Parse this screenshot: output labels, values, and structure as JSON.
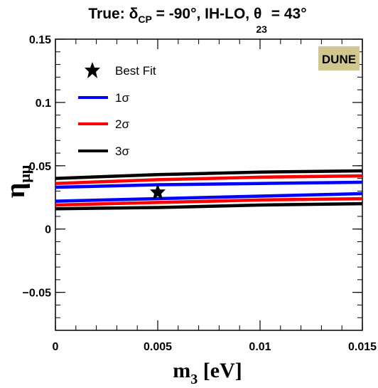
{
  "chart_data": {
    "type": "line",
    "title": {
      "prefix": "True: ",
      "delta": "δ",
      "delta_sub": "CP",
      "middle": " = -90°, IH-LO, ",
      "theta": "θ",
      "theta_sub": "23",
      "suffix": " = 43°"
    },
    "badge": "DUNE",
    "xlabel": {
      "main": "m",
      "sub": "3",
      "unit": " [eV]"
    },
    "ylabel": {
      "main": "η",
      "sub": "μμ"
    },
    "xlim": [
      0,
      0.015
    ],
    "ylim": [
      -0.08,
      0.15
    ],
    "x_ticks": [
      0,
      0.005,
      0.01,
      0.015
    ],
    "x_tick_labels": [
      "0",
      "0.005",
      "0.01",
      "0.015"
    ],
    "y_ticks": [
      -0.05,
      0,
      0.05,
      0.1,
      0.15
    ],
    "y_tick_labels": [
      "−0.05",
      "0",
      "0.05",
      "0.1",
      "0.15"
    ],
    "grid": false,
    "legend_position": "top-left",
    "legend": [
      {
        "label": "Best Fit",
        "marker": "star",
        "color": "#000000"
      },
      {
        "label": "1σ",
        "marker": "line",
        "color": "#0000ff"
      },
      {
        "label": "2σ",
        "marker": "line",
        "color": "#ff0000"
      },
      {
        "label": "3σ",
        "marker": "line",
        "color": "#000000"
      }
    ],
    "best_fit": {
      "x": 0.005,
      "y": 0.029
    },
    "series": [
      {
        "name": "3σ",
        "color": "#000000",
        "x": [
          0,
          0.005,
          0.01,
          0.015
        ],
        "y": [
          0.04,
          0.043,
          0.045,
          0.046
        ]
      },
      {
        "name": "2σ",
        "color": "#ff0000",
        "x": [
          0,
          0.005,
          0.01,
          0.015
        ],
        "y": [
          0.036,
          0.039,
          0.041,
          0.042
        ]
      },
      {
        "name": "1σ",
        "color": "#0000ff",
        "x": [
          0,
          0.005,
          0.01,
          0.015
        ],
        "y": [
          0.033,
          0.035,
          0.036,
          0.037
        ]
      },
      {
        "name": "1σ",
        "color": "#0000ff",
        "x": [
          0,
          0.005,
          0.01,
          0.015
        ],
        "y": [
          0.022,
          0.024,
          0.026,
          0.028
        ]
      },
      {
        "name": "2σ",
        "color": "#ff0000",
        "x": [
          0,
          0.005,
          0.01,
          0.015
        ],
        "y": [
          0.019,
          0.021,
          0.023,
          0.024
        ]
      },
      {
        "name": "3σ",
        "color": "#000000",
        "x": [
          0,
          0.005,
          0.01,
          0.015
        ],
        "y": [
          0.016,
          0.017,
          0.019,
          0.02
        ]
      }
    ],
    "badge_color": "#cfc78e"
  }
}
